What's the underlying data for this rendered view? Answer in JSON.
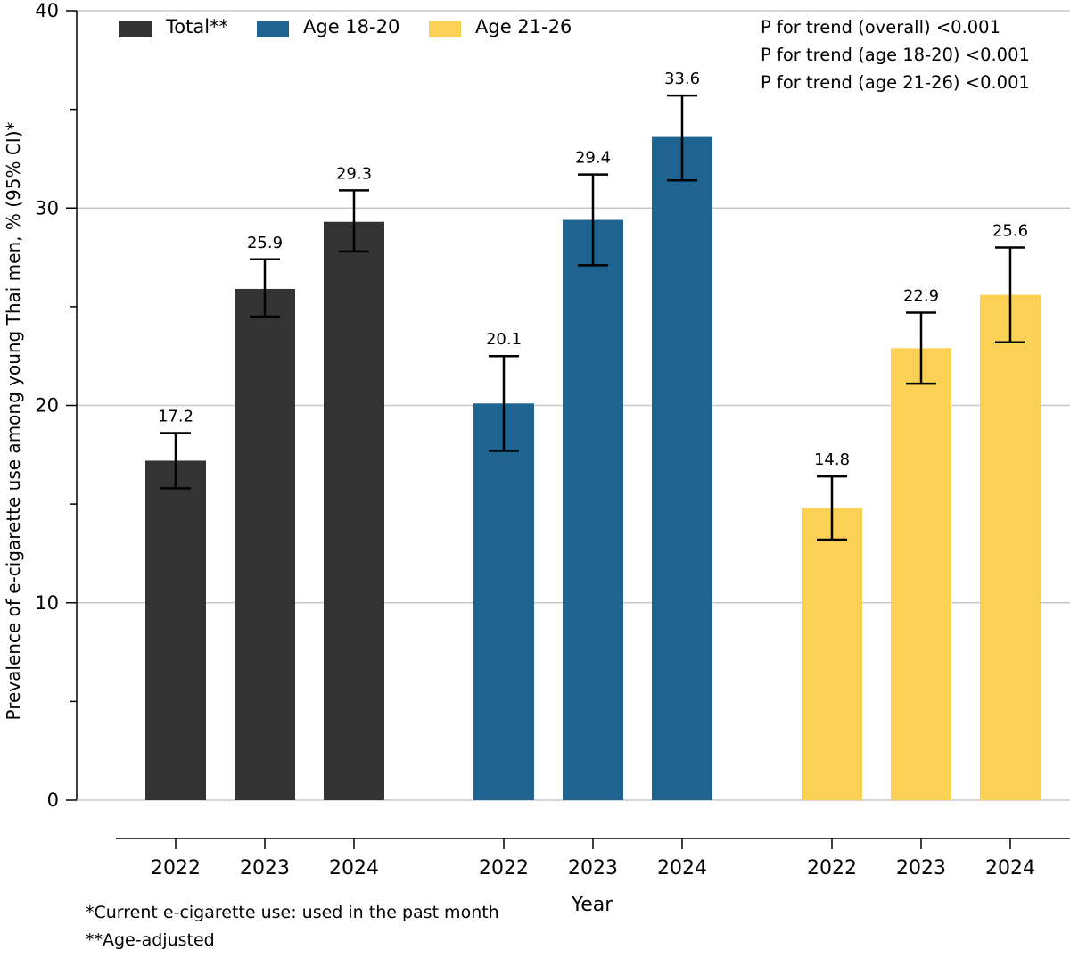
{
  "chart_data": {
    "type": "bar",
    "ylabel": "Prevalence of e-cigarette use among young Thai men, % (95% CI)*",
    "xlabel": "Year",
    "ylim": [
      0,
      40
    ],
    "yticks": [
      0,
      10,
      20,
      30,
      40
    ],
    "grid": true,
    "legend_position": "top-left",
    "groups": [
      {
        "name": "Total**",
        "color": "#333333",
        "categories": [
          "2022",
          "2023",
          "2024"
        ],
        "values": [
          17.2,
          25.9,
          29.3
        ],
        "ci_low": [
          15.8,
          24.5,
          27.8
        ],
        "ci_high": [
          18.6,
          27.4,
          30.9
        ],
        "value_labels": [
          "17.2",
          "25.9",
          "29.3"
        ]
      },
      {
        "name": "Age 18-20",
        "color": "#1f6391",
        "categories": [
          "2022",
          "2023",
          "2024"
        ],
        "values": [
          20.1,
          29.4,
          33.6
        ],
        "ci_low": [
          17.7,
          27.1,
          31.4
        ],
        "ci_high": [
          22.5,
          31.7,
          35.7
        ],
        "value_labels": [
          "20.1",
          "29.4",
          "33.6"
        ]
      },
      {
        "name": "Age 21-26",
        "color": "#fad155",
        "categories": [
          "2022",
          "2023",
          "2024"
        ],
        "values": [
          14.8,
          22.9,
          25.6
        ],
        "ci_low": [
          13.2,
          21.1,
          23.2
        ],
        "ci_high": [
          16.4,
          24.7,
          28.0
        ],
        "value_labels": [
          "14.8",
          "22.9",
          "25.6"
        ]
      }
    ],
    "annotations": [
      "P for trend (overall) <0.001",
      "P for trend (age 18-20) <0.001",
      "P for trend (age 21-26) <0.001"
    ]
  },
  "footnotes": {
    "current_use": "*Current e-cigarette use: used in the past month",
    "age_adjusted": "**Age-adjusted"
  }
}
